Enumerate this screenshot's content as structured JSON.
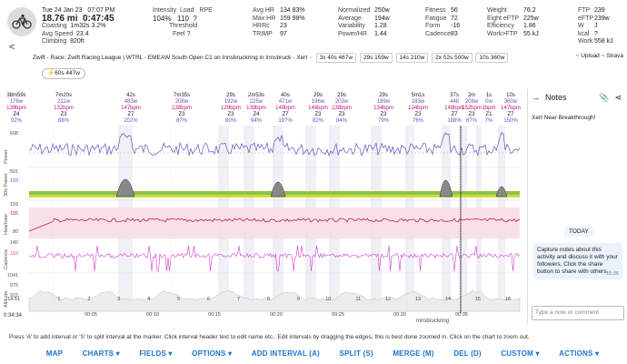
{
  "header": {
    "date": "Tue 24 Jan 23",
    "time": "07:07 PM",
    "distance": "18.76 mi",
    "moving_time": "0:47:45",
    "coasting_label": "Coasting",
    "coasting_val": "1m32s",
    "coasting_pct": "3.2%",
    "avg_speed_label": "Avg Speed",
    "avg_speed_val": "23.4",
    "climbing_label": "Climbing",
    "climbing_val": "820ft",
    "intensity_label": "Intensity",
    "intensity_val": "104%",
    "load_label": "Load",
    "load_val": "110",
    "rpe_label": "RPE",
    "rpe_val": "?",
    "threshold_label": "Threshold",
    "feel_label": "Feel",
    "feel_val": "?",
    "avg_hr_label": "Avg HR",
    "avg_hr_val": "134",
    "avg_hr_pct": "83%",
    "max_hr_label": "Max HR",
    "max_hr_val": "159",
    "max_hr_pct": "98%",
    "hrrc_label": "HRRc",
    "hrrc_val": "23",
    "trimp_label": "TRIMP",
    "trimp_val": "97",
    "normalized_label": "Normalized",
    "normalized_val": "250w",
    "average_label": "Average",
    "average_val": "194w",
    "variability_label": "Variability",
    "variability_val": "1.28",
    "powerhr_label": "Power/HR",
    "powerhr_val": "1.44",
    "fitness_label": "Fitness",
    "fitness_val": "56",
    "fatigue_label": "Fatigue",
    "fatigue_val": "72",
    "form_label": "Form",
    "form_val": "-16",
    "cadence_label": "Cadence",
    "cadence_val": "83",
    "weight_label": "Weight",
    "weight_val": "76.2",
    "eftp_label": "Eight eFTP",
    "eftp_val": "225w",
    "efficiency_label": "Efficiency",
    "efficiency_val": "1.86",
    "work_ftp_label": "Work>FTP",
    "work_ftp_val": "55 kJ",
    "ftp_label": "FTP",
    "ftp_val": "239",
    "eftp2_label": "eFTP",
    "eftp2_val": "239w",
    "wj_label": "W",
    "wj_val": "J",
    "kcal_label": "kcal",
    "kcal_val": "?",
    "work_label": "Work",
    "work_val": "558 kJ"
  },
  "title": {
    "text": "Zwift - Race: Zwift Racing League | WTRL - EMEAW South Open C1 on Innsbruckring in Innsbruck - Xert",
    "chips": [
      "3x 40s 467w",
      "29s 159w",
      "14s 210w",
      "2x 52s 500w",
      "10s 360w"
    ],
    "upload": "~ Upload ~ Strava"
  },
  "badge": "60s 447w",
  "intervals": [
    {
      "dur": "38m59s",
      "w": "176w",
      "bpm": "139bpm",
      "z": "Z4",
      "pct": "92%"
    },
    {
      "dur": "7m20s",
      "w": "211w",
      "bpm": "132bpm",
      "z": "Z3",
      "pct": "88%"
    },
    {
      "dur": "42s",
      "w": "483w",
      "bpm": "147bpm",
      "z": "Z7",
      "pct": "202%"
    },
    {
      "dur": "7m35s",
      "w": "208w",
      "bpm": "138bpm",
      "z": "Z3",
      "pct": "87%"
    },
    {
      "dur": "29s",
      "w": "192w",
      "bpm": "129bpm",
      "z": "Z3",
      "pct": "80%"
    },
    {
      "dur": "2m53s",
      "w": "225w",
      "bpm": "139bpm",
      "z": "Z4",
      "pct": "94%"
    },
    {
      "dur": "40s",
      "w": "471w",
      "bpm": "149bpm",
      "z": "Z7",
      "pct": "197%"
    },
    {
      "dur": "29s",
      "w": "196w",
      "bpm": "146bpm",
      "z": "Z3",
      "pct": "82%"
    },
    {
      "dur": "29s",
      "w": "203w",
      "bpm": "138bpm",
      "z": "Z3",
      "pct": "84%"
    },
    {
      "dur": "29s",
      "w": "189w",
      "bpm": "134bpm",
      "z": "Z3",
      "pct": "79%"
    },
    {
      "dur": "5m1s",
      "w": "183w",
      "bpm": "134bpm",
      "z": "Z3",
      "pct": "76%"
    },
    {
      "dur": "37s",
      "w": "448",
      "bpm": "148bpm",
      "z": "Z7",
      "pct": "188%"
    },
    {
      "dur": "2m",
      "w": "208w",
      "bpm": "152bpm",
      "z": "Z3",
      "pct": "87%"
    },
    {
      "dur": "1s",
      "w": "0w",
      "bpm": "1bpm",
      "z": "Z1",
      "pct": "7%"
    },
    {
      "dur": "10s",
      "w": "360w",
      "bpm": "147bpm",
      "z": "Z7",
      "pct": "150%"
    }
  ],
  "panels": {
    "power": {
      "label": "Power",
      "max": "608"
    },
    "power30": {
      "label": "30s Power",
      "max": "501",
      "val": "103"
    },
    "heartrate": {
      "label": "Heartrate",
      "max": "159",
      "val": "155",
      "min": "80"
    },
    "cadence": {
      "label": "Cadence",
      "max": "140",
      "val": "110"
    },
    "altitude": {
      "label": "Altitude",
      "t1": "1041",
      "t2": "975",
      "t3": "915"
    }
  },
  "x_axis": {
    "start": "0:34:34",
    "start2": "14.51",
    "ticks": [
      "00:05",
      "00:10",
      "00:15",
      "00:20",
      "00:25",
      "00:30",
      "00:35",
      "00:40"
    ],
    "dist_ticks": [
      "1",
      "2",
      "3",
      "4",
      "5",
      "6",
      "7",
      "8",
      "9",
      "10",
      "11",
      "12",
      "13",
      "14",
      "15",
      "16"
    ],
    "label": "Innsbruckring"
  },
  "notes": {
    "title": "Notes",
    "breakthrough": "Xert Near Breakthrough!",
    "today": "TODAY",
    "bubble": "Capture notes about this activity and discuss it with your followers. Click the share button to share with others.",
    "time": "15:36",
    "placeholder": "Type a note or comment"
  },
  "hint": "Press 'A' to add interval or 'S' to split interval at the marker. Click interval header text to edit name etc.. Edit intervals by dragging the edges, this is best done zoomed in. Click on the chart to zoom out.",
  "toolbar": {
    "map": "MAP",
    "charts": "CHARTS ▾",
    "fields": "FIELDS ▾",
    "options": "OPTIONS ▾",
    "add_interval": "ADD INTERVAL (A)",
    "split": "SPLIT (S)",
    "merge": "MERGE (M)",
    "del": "DEL (D)",
    "custom": "CUSTOM ▾",
    "actions": "ACTIONS ▾"
  },
  "colors": {
    "power": "#6a4fbf",
    "hr": "#c2185b",
    "cadence": "#d63ad6",
    "altitude": "#9e9e9e",
    "accent": "#1976d2"
  }
}
